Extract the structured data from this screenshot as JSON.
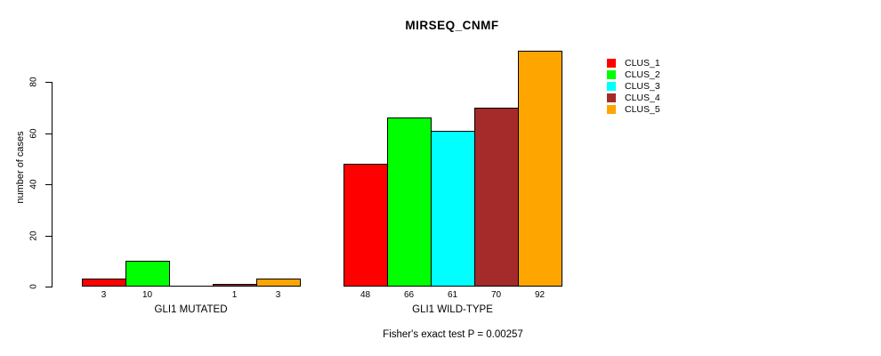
{
  "chart_data": {
    "type": "bar",
    "title": "MIRSEQ_CNMF",
    "ylabel": "number of cases",
    "xlabel": "",
    "ylim": [
      0,
      92
    ],
    "yticks": [
      0,
      20,
      40,
      60,
      80
    ],
    "grid": false,
    "legend_position": "top-right",
    "series": [
      {
        "name": "CLUS_1",
        "color": "#FF0000"
      },
      {
        "name": "CLUS_2",
        "color": "#00FF00"
      },
      {
        "name": "CLUS_3",
        "color": "#00FFFF"
      },
      {
        "name": "CLUS_4",
        "color": "#A52A2A"
      },
      {
        "name": "CLUS_5",
        "color": "#FFA500"
      }
    ],
    "groups": [
      {
        "label": "GLI1 MUTATED",
        "values": [
          3,
          10,
          0,
          1,
          3
        ],
        "bar_labels": [
          "3",
          "10",
          "",
          "1",
          "3"
        ]
      },
      {
        "label": "GLI1 WILD-TYPE",
        "values": [
          48,
          66,
          61,
          70,
          92
        ],
        "bar_labels": [
          "48",
          "66",
          "61",
          "70",
          "92"
        ]
      }
    ],
    "annotation": "Fisher's exact test P = 0.00257"
  }
}
